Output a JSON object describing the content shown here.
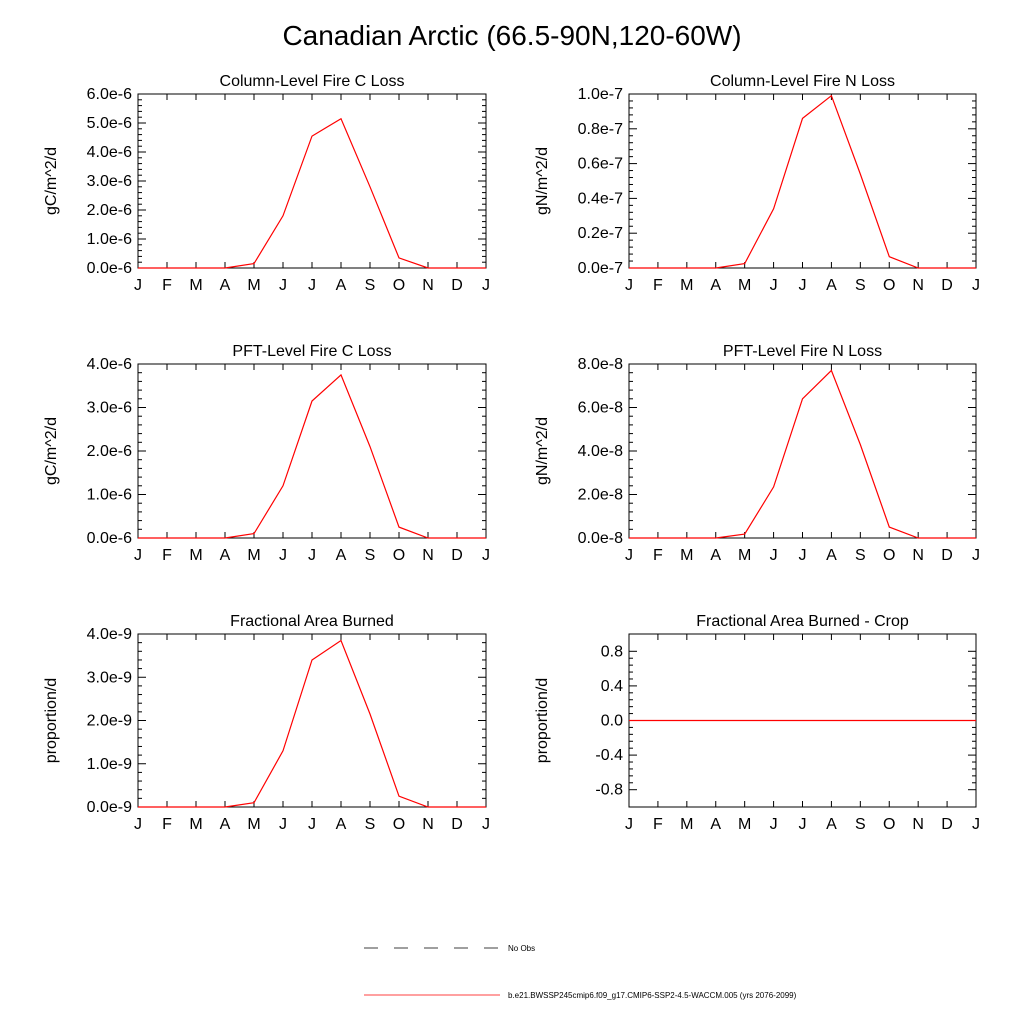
{
  "figure": {
    "title": "Canadian Arctic (66.5-90N,120-60W)",
    "line_color": "#ff0000",
    "axis_color": "#000000"
  },
  "legend": [
    {
      "label": "No Obs",
      "style": "dashed",
      "color": "#000000"
    },
    {
      "label": "b.e21.BWSSP245cmip6.f09_g17.CMIP6-SSP2-4.5-WACCM.005 (yrs 2076-2099)",
      "style": "solid",
      "color": "#ff0000"
    }
  ],
  "chart_data": [
    {
      "type": "line",
      "title": "Column-Level Fire C Loss",
      "ylabel": "gC/m^2/d",
      "xlabel": "",
      "categories": [
        "J",
        "F",
        "M",
        "A",
        "M",
        "J",
        "J",
        "A",
        "S",
        "O",
        "N",
        "D",
        "J"
      ],
      "ylim": [
        0,
        6e-06
      ],
      "yticks": [
        0,
        1e-06,
        2e-06,
        3e-06,
        4e-06,
        5e-06,
        6e-06
      ],
      "yticklabels": [
        "0.0e-6",
        "1.0e-6",
        "2.0e-6",
        "3.0e-6",
        "4.0e-6",
        "5.0e-6",
        "6.0e-6"
      ],
      "series": [
        {
          "values": [
            0,
            0,
            0,
            0,
            1.5e-07,
            1.8e-06,
            4.55e-06,
            5.15e-06,
            2.8e-06,
            3.5e-07,
            0,
            0,
            0
          ]
        }
      ]
    },
    {
      "type": "line",
      "title": "Column-Level Fire N Loss",
      "ylabel": "gN/m^2/d",
      "xlabel": "",
      "categories": [
        "J",
        "F",
        "M",
        "A",
        "M",
        "J",
        "J",
        "A",
        "S",
        "O",
        "N",
        "D",
        "J"
      ],
      "ylim": [
        0,
        1e-07
      ],
      "yticks": [
        0,
        2e-08,
        4e-08,
        6e-08,
        8e-08,
        1e-07
      ],
      "yticklabels": [
        "0.0e-7",
        "0.2e-7",
        "0.4e-7",
        "0.6e-7",
        "0.8e-7",
        "1.0e-7"
      ],
      "series": [
        {
          "values": [
            0,
            0,
            0,
            0,
            2.5e-09,
            3.4e-08,
            8.6e-08,
            9.9e-08,
            5.4e-08,
            6.5e-09,
            0,
            0,
            0
          ]
        }
      ]
    },
    {
      "type": "line",
      "title": "PFT-Level Fire C Loss",
      "ylabel": "gC/m^2/d",
      "xlabel": "",
      "categories": [
        "J",
        "F",
        "M",
        "A",
        "M",
        "J",
        "J",
        "A",
        "S",
        "O",
        "N",
        "D",
        "J"
      ],
      "ylim": [
        0,
        4e-06
      ],
      "yticks": [
        0,
        1e-06,
        2e-06,
        3e-06,
        4e-06
      ],
      "yticklabels": [
        "0.0e-6",
        "1.0e-6",
        "2.0e-6",
        "3.0e-6",
        "4.0e-6"
      ],
      "series": [
        {
          "values": [
            0,
            0,
            0,
            0,
            1e-07,
            1.2e-06,
            3.15e-06,
            3.75e-06,
            2.1e-06,
            2.5e-07,
            0,
            0,
            0
          ]
        }
      ]
    },
    {
      "type": "line",
      "title": "PFT-Level Fire N Loss",
      "ylabel": "gN/m^2/d",
      "xlabel": "",
      "categories": [
        "J",
        "F",
        "M",
        "A",
        "M",
        "J",
        "J",
        "A",
        "S",
        "O",
        "N",
        "D",
        "J"
      ],
      "ylim": [
        0,
        8e-08
      ],
      "yticks": [
        0,
        2e-08,
        4e-08,
        6e-08,
        8e-08
      ],
      "yticklabels": [
        "0.0e-8",
        "2.0e-8",
        "4.0e-8",
        "6.0e-8",
        "8.0e-8"
      ],
      "series": [
        {
          "values": [
            0,
            0,
            0,
            0,
            1.8e-09,
            2.35e-08,
            6.4e-08,
            7.7e-08,
            4.3e-08,
            5e-09,
            0,
            0,
            0
          ]
        }
      ]
    },
    {
      "type": "line",
      "title": "Fractional Area Burned",
      "ylabel": "proportion/d",
      "xlabel": "",
      "categories": [
        "J",
        "F",
        "M",
        "A",
        "M",
        "J",
        "J",
        "A",
        "S",
        "O",
        "N",
        "D",
        "J"
      ],
      "ylim": [
        0,
        4e-09
      ],
      "yticks": [
        0,
        1e-09,
        2e-09,
        3e-09,
        4e-09
      ],
      "yticklabels": [
        "0.0e-9",
        "1.0e-9",
        "2.0e-9",
        "3.0e-9",
        "4.0e-9"
      ],
      "series": [
        {
          "values": [
            0,
            0,
            0,
            0,
            1e-10,
            1.3e-09,
            3.4e-09,
            3.85e-09,
            2.15e-09,
            2.5e-10,
            0,
            0,
            0
          ]
        }
      ]
    },
    {
      "type": "line",
      "title": "Fractional Area Burned - Crop",
      "ylabel": "proportion/d",
      "xlabel": "",
      "categories": [
        "J",
        "F",
        "M",
        "A",
        "M",
        "J",
        "J",
        "A",
        "S",
        "O",
        "N",
        "D",
        "J"
      ],
      "ylim": [
        -1,
        1
      ],
      "yticks": [
        -0.8,
        -0.4,
        0,
        0.4,
        0.8
      ],
      "yticklabels": [
        "-0.8",
        "-0.4",
        "0.0",
        "0.4",
        "0.8"
      ],
      "series": [
        {
          "values": [
            0,
            0,
            0,
            0,
            0,
            0,
            0,
            0,
            0,
            0,
            0,
            0,
            0
          ]
        }
      ]
    }
  ]
}
